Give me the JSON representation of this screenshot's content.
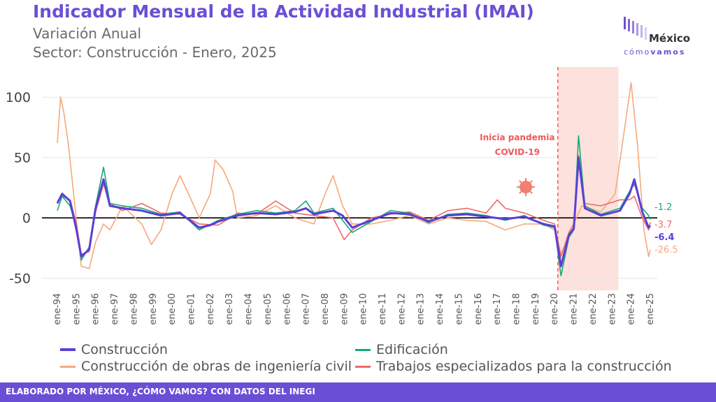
{
  "header": {
    "title": "Indicador Mensual de la Actividad Industrial (IMAI)",
    "subtitle_1": "Variación Anual",
    "subtitle_2": "Sector: Construcción - Enero, 2025"
  },
  "logo": {
    "name": "México",
    "sub_1": "cómo",
    "sub_2": "vamos"
  },
  "footer": {
    "text": "ELABORADO POR MÉXICO, ¿CÓMO VAMOS? CON DATOS DEL INEGI"
  },
  "colors": {
    "construccion": "#5b3fd6",
    "edificacion": "#17a974",
    "ingenieria_civil": "#f5a97d",
    "trabajos_especializados": "#ef6a6a",
    "pandemic_band": "#fde1dc",
    "pandemic_line": "#ef5a5a"
  },
  "chart_data": {
    "type": "line",
    "ylim": [
      -60,
      125
    ],
    "yticks": [
      -50,
      0,
      50,
      100
    ],
    "ytick_labels": [
      "-50",
      "0",
      "50",
      "100"
    ],
    "x_start": "1994-01",
    "x_end": "2025-01",
    "xtick_labels": [
      "ene-94",
      "ene-95",
      "ene-96",
      "ene-97",
      "ene-98",
      "ene-99",
      "ene-00",
      "ene-01",
      "ene-02",
      "ene-03",
      "ene-04",
      "ene-05",
      "ene-06",
      "ene-07",
      "ene-08",
      "ene-09",
      "ene-10",
      "ene-11",
      "ene-12",
      "ene-13",
      "ene-14",
      "ene-15",
      "ene-16",
      "ene-17",
      "ene-18",
      "ene-19",
      "ene-20",
      "ene-21",
      "ene-22",
      "ene-23",
      "ene-24",
      "ene-25"
    ],
    "grid": true,
    "legend_position": "bottom",
    "annotation": {
      "text_1": "Inicia pandemia",
      "text_2": "COVID-19",
      "date": "2020-03"
    },
    "shaded_period": [
      "2020-03",
      "2023-05"
    ],
    "series": [
      {
        "key": "construccion",
        "name": "Construcción",
        "last_label": "-6.4",
        "points": [
          [
            "1994-01",
            12
          ],
          [
            "1994-04",
            20
          ],
          [
            "1994-09",
            14
          ],
          [
            "1995-01",
            -10
          ],
          [
            "1995-04",
            -32
          ],
          [
            "1995-09",
            -26
          ],
          [
            "1996-01",
            8
          ],
          [
            "1996-06",
            32
          ],
          [
            "1996-10",
            10
          ],
          [
            "1997-06",
            8
          ],
          [
            "1998-06",
            6
          ],
          [
            "1999-06",
            2
          ],
          [
            "2000-06",
            4
          ],
          [
            "2001-06",
            -8
          ],
          [
            "2002-01",
            -6
          ],
          [
            "2002-06",
            -3
          ],
          [
            "2003-06",
            2
          ],
          [
            "2004-06",
            4
          ],
          [
            "2005-06",
            3
          ],
          [
            "2006-06",
            5
          ],
          [
            "2007-01",
            8
          ],
          [
            "2007-06",
            3
          ],
          [
            "2008-06",
            6
          ],
          [
            "2008-12",
            2
          ],
          [
            "2009-06",
            -8
          ],
          [
            "2010-06",
            -2
          ],
          [
            "2011-06",
            4
          ],
          [
            "2012-06",
            3
          ],
          [
            "2013-06",
            -3
          ],
          [
            "2014-06",
            2
          ],
          [
            "2015-06",
            3
          ],
          [
            "2016-06",
            1
          ],
          [
            "2017-06",
            -1
          ],
          [
            "2018-06",
            1
          ],
          [
            "2019-06",
            -5
          ],
          [
            "2020-01",
            -7
          ],
          [
            "2020-05",
            -40
          ],
          [
            "2020-10",
            -14
          ],
          [
            "2021-01",
            -9
          ],
          [
            "2021-04",
            50
          ],
          [
            "2021-08",
            8
          ],
          [
            "2022-06",
            2
          ],
          [
            "2023-06",
            6
          ],
          [
            "2023-12",
            20
          ],
          [
            "2024-03",
            32
          ],
          [
            "2024-08",
            5
          ],
          [
            "2024-12",
            -8
          ],
          [
            "2025-01",
            -6.4
          ]
        ]
      },
      {
        "key": "edificacion",
        "name": "Edificación",
        "last_label": "-1.2",
        "points": [
          [
            "1994-01",
            6
          ],
          [
            "1994-04",
            18
          ],
          [
            "1994-09",
            10
          ],
          [
            "1995-01",
            -8
          ],
          [
            "1995-04",
            -35
          ],
          [
            "1995-09",
            -24
          ],
          [
            "1996-01",
            10
          ],
          [
            "1996-06",
            42
          ],
          [
            "1996-10",
            12
          ],
          [
            "1997-06",
            10
          ],
          [
            "1998-06",
            8
          ],
          [
            "1999-06",
            3
          ],
          [
            "2000-06",
            5
          ],
          [
            "2001-06",
            -10
          ],
          [
            "2002-06",
            -2
          ],
          [
            "2003-06",
            3
          ],
          [
            "2004-06",
            6
          ],
          [
            "2005-06",
            4
          ],
          [
            "2006-06",
            6
          ],
          [
            "2007-01",
            14
          ],
          [
            "2007-06",
            4
          ],
          [
            "2008-06",
            8
          ],
          [
            "2009-06",
            -12
          ],
          [
            "2010-06",
            -3
          ],
          [
            "2011-06",
            6
          ],
          [
            "2012-06",
            4
          ],
          [
            "2013-06",
            -4
          ],
          [
            "2014-06",
            3
          ],
          [
            "2015-06",
            4
          ],
          [
            "2016-06",
            2
          ],
          [
            "2017-06",
            -2
          ],
          [
            "2018-06",
            2
          ],
          [
            "2019-06",
            -6
          ],
          [
            "2020-01",
            -8
          ],
          [
            "2020-05",
            -48
          ],
          [
            "2020-10",
            -16
          ],
          [
            "2021-01",
            -10
          ],
          [
            "2021-04",
            68
          ],
          [
            "2021-08",
            10
          ],
          [
            "2022-06",
            3
          ],
          [
            "2023-06",
            8
          ],
          [
            "2023-12",
            22
          ],
          [
            "2024-03",
            28
          ],
          [
            "2024-08",
            8
          ],
          [
            "2024-12",
            2
          ],
          [
            "2025-01",
            -1.2
          ]
        ]
      },
      {
        "key": "ingenieria_civil",
        "name": "Construcción de obras de ingeniería civil",
        "last_label": "-26.5",
        "points": [
          [
            "1994-01",
            62
          ],
          [
            "1994-03",
            100
          ],
          [
            "1994-05",
            88
          ],
          [
            "1994-08",
            60
          ],
          [
            "1994-12",
            10
          ],
          [
            "1995-04",
            -40
          ],
          [
            "1995-09",
            -42
          ],
          [
            "1996-01",
            -20
          ],
          [
            "1996-06",
            -5
          ],
          [
            "1996-10",
            -10
          ],
          [
            "1997-06",
            10
          ],
          [
            "1998-06",
            -5
          ],
          [
            "1998-12",
            -22
          ],
          [
            "1999-06",
            -10
          ],
          [
            "2000-01",
            20
          ],
          [
            "2000-06",
            35
          ],
          [
            "2001-01",
            15
          ],
          [
            "2001-06",
            0
          ],
          [
            "2002-01",
            20
          ],
          [
            "2002-04",
            48
          ],
          [
            "2002-09",
            40
          ],
          [
            "2003-03",
            22
          ],
          [
            "2003-06",
            0
          ],
          [
            "2004-06",
            2
          ],
          [
            "2005-06",
            10
          ],
          [
            "2006-06",
            0
          ],
          [
            "2007-06",
            -5
          ],
          [
            "2008-01",
            20
          ],
          [
            "2008-06",
            35
          ],
          [
            "2008-12",
            10
          ],
          [
            "2009-06",
            -5
          ],
          [
            "2010-06",
            -5
          ],
          [
            "2011-06",
            -2
          ],
          [
            "2012-06",
            2
          ],
          [
            "2013-06",
            -5
          ],
          [
            "2014-06",
            0
          ],
          [
            "2015-06",
            -2
          ],
          [
            "2016-06",
            -3
          ],
          [
            "2017-06",
            -10
          ],
          [
            "2018-06",
            -5
          ],
          [
            "2019-06",
            -5
          ],
          [
            "2020-01",
            -10
          ],
          [
            "2020-05",
            -30
          ],
          [
            "2020-10",
            -15
          ],
          [
            "2021-01",
            -5
          ],
          [
            "2021-06",
            10
          ],
          [
            "2022-06",
            5
          ],
          [
            "2023-03",
            20
          ],
          [
            "2023-09",
            75
          ],
          [
            "2024-01",
            112
          ],
          [
            "2024-05",
            60
          ],
          [
            "2024-09",
            -10
          ],
          [
            "2024-12",
            -32
          ],
          [
            "2025-01",
            -26.5
          ]
        ]
      },
      {
        "key": "trabajos_especializados",
        "name": "Trabajos especializados para la construcción",
        "last_label": "-3.7",
        "points": [
          [
            "1994-01",
            14
          ],
          [
            "1994-04",
            18
          ],
          [
            "1994-09",
            15
          ],
          [
            "1995-01",
            -5
          ],
          [
            "1995-04",
            -30
          ],
          [
            "1995-09",
            -28
          ],
          [
            "1996-01",
            5
          ],
          [
            "1996-06",
            28
          ],
          [
            "1996-10",
            12
          ],
          [
            "1997-06",
            6
          ],
          [
            "1998-06",
            12
          ],
          [
            "1999-06",
            4
          ],
          [
            "2000-06",
            3
          ],
          [
            "2001-06",
            -5
          ],
          [
            "2002-06",
            -6
          ],
          [
            "2003-06",
            4
          ],
          [
            "2004-06",
            3
          ],
          [
            "2005-06",
            14
          ],
          [
            "2006-06",
            4
          ],
          [
            "2007-06",
            2
          ],
          [
            "2008-06",
            0
          ],
          [
            "2009-01",
            -18
          ],
          [
            "2009-06",
            -10
          ],
          [
            "2010-06",
            0
          ],
          [
            "2011-06",
            3
          ],
          [
            "2012-06",
            5
          ],
          [
            "2013-06",
            -2
          ],
          [
            "2014-06",
            6
          ],
          [
            "2015-06",
            8
          ],
          [
            "2016-06",
            4
          ],
          [
            "2017-01",
            15
          ],
          [
            "2017-06",
            8
          ],
          [
            "2018-06",
            4
          ],
          [
            "2019-06",
            -2
          ],
          [
            "2020-01",
            -5
          ],
          [
            "2020-05",
            -32
          ],
          [
            "2020-10",
            -12
          ],
          [
            "2021-01",
            -5
          ],
          [
            "2021-04",
            52
          ],
          [
            "2021-08",
            12
          ],
          [
            "2022-06",
            10
          ],
          [
            "2023-06",
            15
          ],
          [
            "2023-12",
            15
          ],
          [
            "2024-03",
            18
          ],
          [
            "2024-08",
            0
          ],
          [
            "2024-12",
            -10
          ],
          [
            "2025-01",
            -3.7
          ]
        ]
      }
    ]
  }
}
